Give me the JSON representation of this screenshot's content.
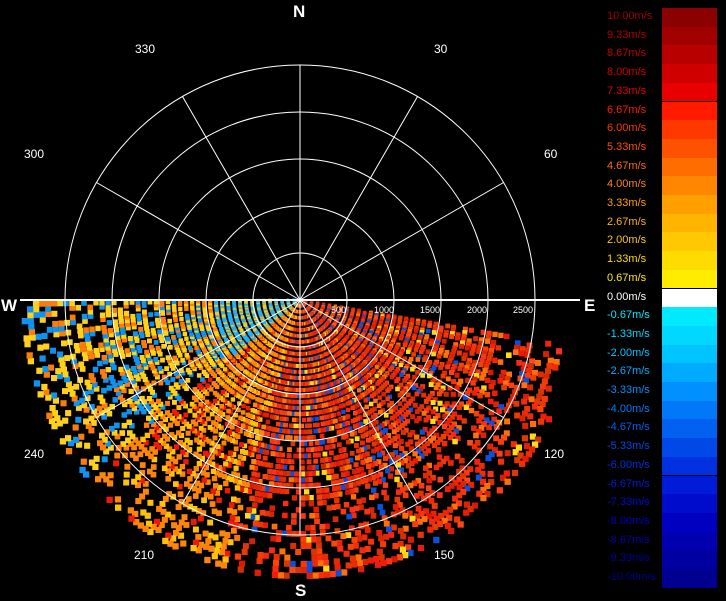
{
  "compass": {
    "north": "N",
    "south": "S",
    "east": "E",
    "west": "W"
  },
  "angles": {
    "a330": "330",
    "a30": "30",
    "a300": "300",
    "a60": "60",
    "a240": "240",
    "a120": "120",
    "a210": "210",
    "a150": "150"
  },
  "range_labels": [
    "500",
    "1000",
    "1500",
    "2000",
    "2500"
  ],
  "legend": [
    {
      "label": "10.00m/s",
      "color": "#8b0000",
      "text_color": "#a00000"
    },
    {
      "label": "9.33m/s",
      "color": "#a00000",
      "text_color": "#b00000"
    },
    {
      "label": "8.67m/s",
      "color": "#b80000",
      "text_color": "#c00000"
    },
    {
      "label": "8.00m/s",
      "color": "#d00000",
      "text_color": "#d00000"
    },
    {
      "label": "7.33m/s",
      "color": "#e80000",
      "text_color": "#e00000"
    },
    {
      "label": "6.67m/s",
      "color": "#ff1a00",
      "text_color": "#ff1a00"
    },
    {
      "label": "6.00m/s",
      "color": "#ff3800",
      "text_color": "#ff3800"
    },
    {
      "label": "5.33m/s",
      "color": "#ff5200",
      "text_color": "#ff5200"
    },
    {
      "label": "4.67m/s",
      "color": "#ff6c00",
      "text_color": "#ff6c00"
    },
    {
      "label": "4.00m/s",
      "color": "#ff8600",
      "text_color": "#ff8600"
    },
    {
      "label": "3.33m/s",
      "color": "#ffa000",
      "text_color": "#ffa000"
    },
    {
      "label": "2.67m/s",
      "color": "#ffb400",
      "text_color": "#ffb400"
    },
    {
      "label": "2.00m/s",
      "color": "#ffc800",
      "text_color": "#ffc800"
    },
    {
      "label": "1.33m/s",
      "color": "#ffdc00",
      "text_color": "#ffdc00"
    },
    {
      "label": "0.67m/s",
      "color": "#ffec00",
      "text_color": "#ffec00"
    },
    {
      "label": "0.00m/s",
      "color": "#ffffff",
      "text_color": "#ffffff"
    },
    {
      "label": "-0.67m/s",
      "color": "#00eaff",
      "text_color": "#00eaff"
    },
    {
      "label": "-1.33m/s",
      "color": "#00d8ff",
      "text_color": "#00d8ff"
    },
    {
      "label": "-2.00m/s",
      "color": "#00c4ff",
      "text_color": "#00c4ff"
    },
    {
      "label": "-2.67m/s",
      "color": "#00aaff",
      "text_color": "#00aaff"
    },
    {
      "label": "-3.33m/s",
      "color": "#0090ff",
      "text_color": "#0090ff"
    },
    {
      "label": "-4.00m/s",
      "color": "#0078f8",
      "text_color": "#0078f8"
    },
    {
      "label": "-4.67m/s",
      "color": "#0060f0",
      "text_color": "#0060f0"
    },
    {
      "label": "-5.33m/s",
      "color": "#0048e8",
      "text_color": "#0048e8"
    },
    {
      "label": "-6.00m/s",
      "color": "#0030e0",
      "text_color": "#0030e0"
    },
    {
      "label": "-6.67m/s",
      "color": "#001cd8",
      "text_color": "#001cd8"
    },
    {
      "label": "-7.33m/s",
      "color": "#000ccc",
      "text_color": "#000ccc"
    },
    {
      "label": "-8.00m/s",
      "color": "#0000c0",
      "text_color": "#0000c0"
    },
    {
      "label": "-8.67m/s",
      "color": "#0000b0",
      "text_color": "#0000b0"
    },
    {
      "label": "-9.33m/s",
      "color": "#0000a0",
      "text_color": "#0000a0"
    },
    {
      "label": "-10.00m/s",
      "color": "#000090",
      "text_color": "#000090"
    }
  ]
}
